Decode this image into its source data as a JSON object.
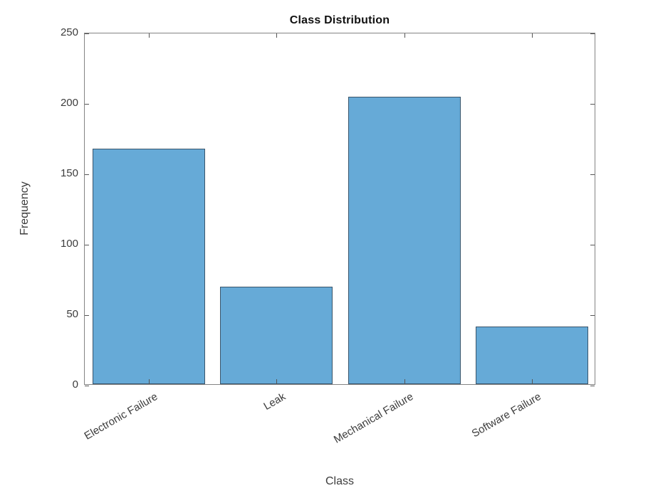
{
  "chart_data": {
    "type": "bar",
    "title": "Class Distribution",
    "xlabel": "Class",
    "ylabel": "Frequency",
    "categories": [
      "Electronic Failure",
      "Leak",
      "Mechanical Failure",
      "Software Failure"
    ],
    "values": [
      167,
      69,
      204,
      41
    ],
    "ylim": [
      0,
      250
    ],
    "yticks": [
      0,
      50,
      100,
      150,
      200,
      250
    ],
    "grid": false,
    "legend_position": "none",
    "x_tick_label_rotation_deg": 30,
    "colors": {
      "bar_face": "#66AAD7",
      "bar_edge": "#3A556B",
      "axis_box": "#848484",
      "tick_mark": "#555555",
      "tick_text": "#3C3C3C",
      "title_text": "#111111"
    }
  }
}
